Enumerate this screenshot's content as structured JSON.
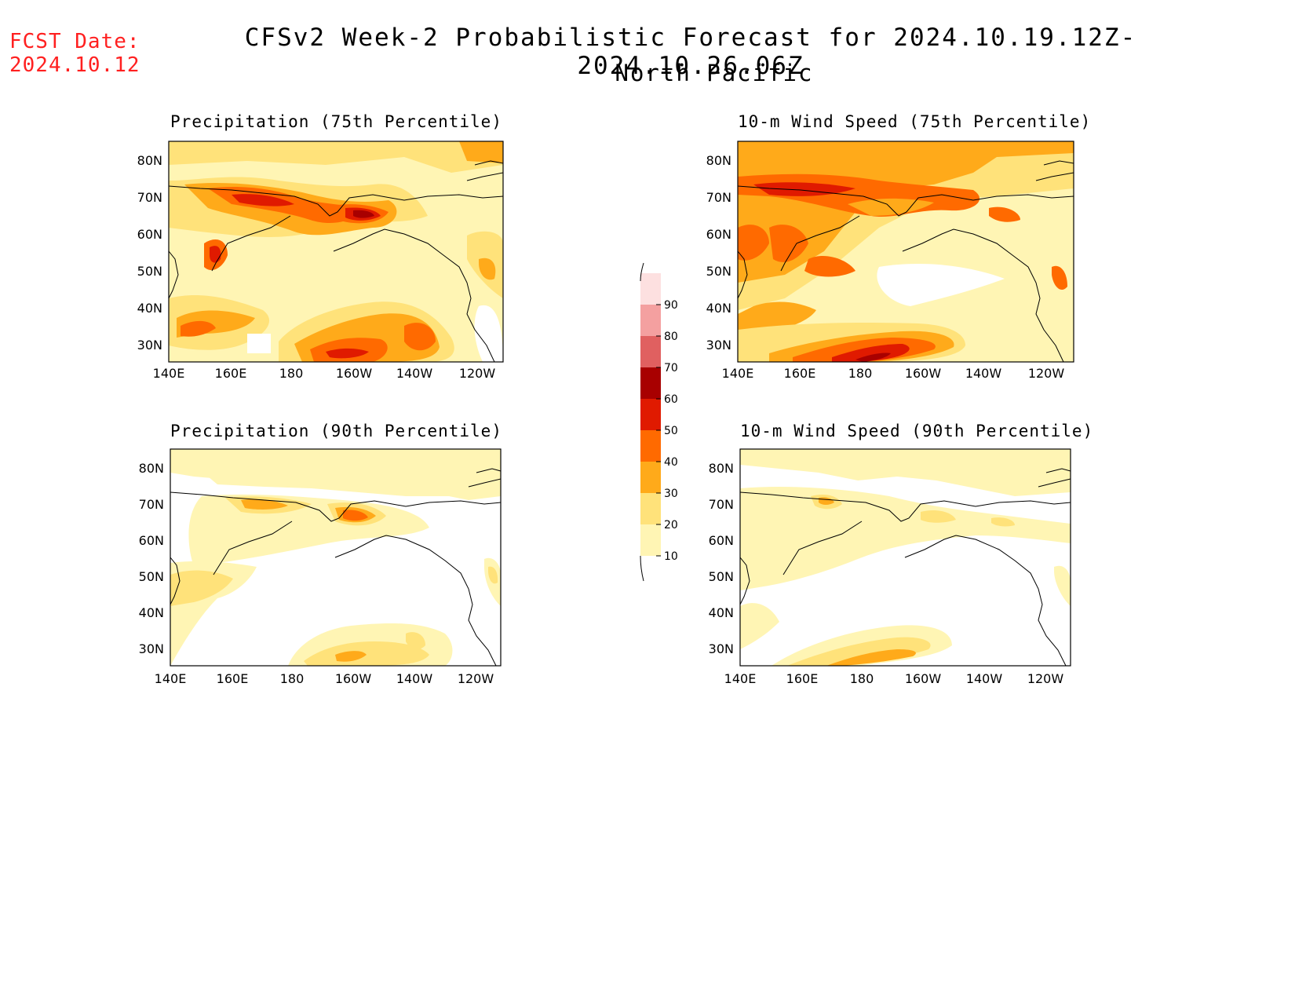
{
  "header": {
    "fcst_label": "FCST Date:",
    "fcst_date": "2024.10.12",
    "title": "CFSv2 Week-2 Probabilistic Forecast for 2024.10.19.12Z-2024.10.26.06Z",
    "region": "North Pacific"
  },
  "axes": {
    "lon_ticks": [
      "140E",
      "160E",
      "180",
      "160W",
      "140W",
      "120W"
    ],
    "lat_ticks": [
      "80N",
      "70N",
      "60N",
      "50N",
      "40N",
      "30N"
    ]
  },
  "panels": {
    "precip75": {
      "title": "Precipitation (75th Percentile)"
    },
    "wind75": {
      "title": "10-m Wind Speed (75th Percentile)"
    },
    "precip90": {
      "title": "Precipitation (90th Percentile)"
    },
    "wind90": {
      "title": "10-m Wind Speed (90th Percentile)"
    }
  },
  "colorbar": {
    "levels": [
      "10",
      "20",
      "30",
      "40",
      "50",
      "60",
      "70",
      "80",
      "90"
    ],
    "colors": [
      "#fff5b4",
      "#ffe27a",
      "#ffaa1a",
      "#ff6a00",
      "#e01a00",
      "#a80000",
      "#e06060",
      "#f4a0a0",
      "#fde0e0"
    ]
  }
}
